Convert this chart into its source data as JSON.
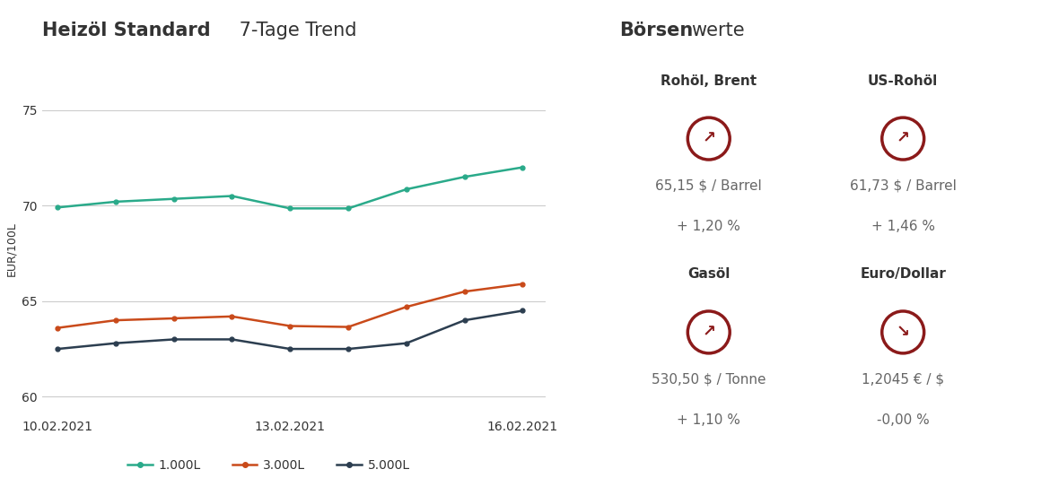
{
  "title_bold": "Heizöl Standard",
  "title_normal": " 7-Tage Trend",
  "right_title_bold": "Börsen",
  "right_title_normal": "werte",
  "ylabel": "EUR/100L",
  "yticks": [
    60,
    65,
    70,
    75
  ],
  "xtick_labels": [
    "10.02.2021",
    "13.02.2021",
    "16.02.2021"
  ],
  "xtick_positions": [
    0,
    3,
    6
  ],
  "series": [
    {
      "key": "1000L",
      "color": "#2aaa8a",
      "label": "1.000L",
      "values": [
        69.9,
        70.2,
        70.35,
        70.5,
        69.85,
        69.85,
        70.85,
        71.5,
        72.0
      ]
    },
    {
      "key": "3000L",
      "color": "#c94a1a",
      "label": "3.000L",
      "values": [
        63.6,
        64.0,
        64.1,
        64.2,
        63.7,
        63.65,
        64.7,
        65.5,
        65.9
      ]
    },
    {
      "key": "5000L",
      "color": "#2c3e50",
      "label": "5.000L",
      "values": [
        62.5,
        62.8,
        63.0,
        63.0,
        62.5,
        62.5,
        62.8,
        64.0,
        64.5
      ]
    }
  ],
  "x_values": [
    0,
    0.75,
    1.5,
    2.25,
    3,
    3.75,
    4.5,
    5.25,
    6
  ],
  "borse_items": [
    {
      "name": "Rohöl, Brent",
      "price": "65,15 $ / Barrel",
      "change": "+ 1,20 %",
      "arrow_up": true,
      "col": 0,
      "row": 0
    },
    {
      "name": "US-Rohöl",
      "price": "61,73 $ / Barrel",
      "change": "+ 1,46 %",
      "arrow_up": true,
      "col": 1,
      "row": 0
    },
    {
      "name": "Gasöl",
      "price": "530,50 $ / Tonne",
      "change": "+ 1,10 %",
      "arrow_up": true,
      "col": 0,
      "row": 1
    },
    {
      "name": "Euro/Dollar",
      "price": "1,2045 € / $",
      "change": "-0,00 %",
      "arrow_up": false,
      "col": 1,
      "row": 1
    }
  ],
  "bg_color": "#ffffff",
  "grid_color": "#cccccc",
  "arrow_circle_color": "#8b1a1a",
  "text_color_dark": "#333333",
  "text_color_mid": "#666666"
}
